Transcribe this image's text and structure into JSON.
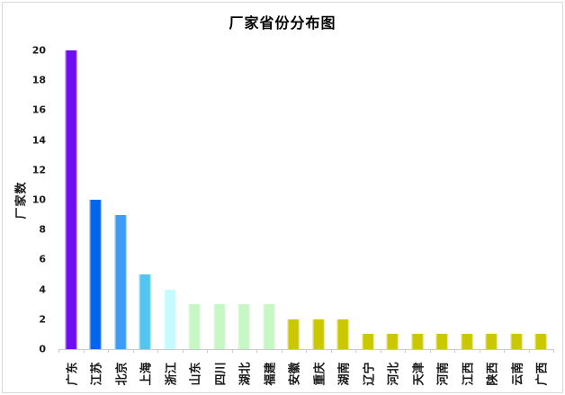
{
  "page": {
    "background": "#FFFFFF",
    "frame_border_color": "#D9D9D9"
  },
  "chart_data": {
    "type": "bar",
    "title": "厂家省份分布图",
    "xlabel": "",
    "ylabel": "厂家数",
    "categories": [
      "广东",
      "江苏",
      "北京",
      "上海",
      "浙江",
      "山东",
      "四川",
      "湖北",
      "福建",
      "安徽",
      "重庆",
      "湖南",
      "辽宁",
      "河北",
      "天津",
      "河南",
      "江西",
      "陕西",
      "云南",
      "广西"
    ],
    "values": [
      20,
      10,
      9,
      5,
      4,
      3,
      3,
      3,
      3,
      2,
      2,
      2,
      1,
      1,
      1,
      1,
      1,
      1,
      1,
      1
    ],
    "bar_colors": [
      "#6E0CF2",
      "#0066F0",
      "#3E9BF5",
      "#55C4F0",
      "#C4FBFE",
      "#C8F7C6",
      "#C8F7C6",
      "#C8F7C6",
      "#C8F7C6",
      "#C9C801",
      "#C9C801",
      "#C9C801",
      "#C9C801",
      "#C9C801",
      "#C9C801",
      "#C9C801",
      "#C9C801",
      "#C9C801",
      "#C9C801",
      "#C9C801"
    ],
    "ylim": [
      0,
      20
    ],
    "ytick_step": 2,
    "grid": false,
    "legend": false,
    "axis_color": "#C9C9C9",
    "text_color": "#1A1A1A"
  }
}
